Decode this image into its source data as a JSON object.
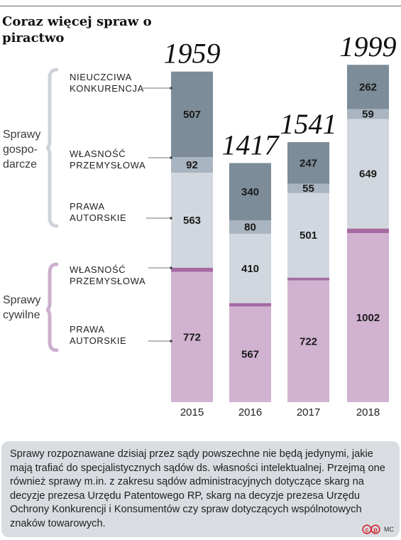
{
  "title": "Coraz więcej spraw o piractwo",
  "groups": [
    {
      "label_lines": [
        "Sprawy",
        "gospo-",
        "darcze"
      ]
    },
    {
      "label_lines": [
        "Sprawy",
        "cywilne"
      ]
    }
  ],
  "segment_labels": [
    {
      "lines": [
        "NIEUCZCIWA",
        "KONKURENCJA"
      ]
    },
    {
      "lines": [
        "WŁASNOŚĆ",
        "PRZEMYSŁOWA"
      ]
    },
    {
      "lines": [
        "PRAWA",
        "AUTORSKIE"
      ]
    },
    {
      "lines": [
        "WŁASNOŚĆ",
        "PRZEMYSŁOWA"
      ]
    },
    {
      "lines": [
        "PRAWA",
        "AUTORSKIE"
      ]
    }
  ],
  "colors": {
    "nieuczciwa": "#7c8c98",
    "wlasnosc_gosp": "#a9b5c0",
    "autorskie_gosp": "#d1d7de",
    "wlasnosc_cyw": "#a56aa2",
    "autorskie_cyw": "#d1b3d1",
    "bracket": "#cfd4da",
    "bracket_cyw": "#cdb0cf"
  },
  "chart_data": {
    "type": "bar",
    "stacked": true,
    "categories": [
      "2015",
      "2016",
      "2017",
      "2018"
    ],
    "totals": [
      "1959",
      "1417",
      "1541",
      "1999"
    ],
    "ylim": [
      0,
      2000
    ],
    "series": [
      {
        "key": "autorskie_cyw",
        "values": [
          772,
          567,
          722,
          1002
        ]
      },
      {
        "key": "wlasnosc_cyw",
        "values": [
          25,
          20,
          16,
          27
        ]
      },
      {
        "key": "autorskie_gosp",
        "values": [
          563,
          410,
          501,
          649
        ]
      },
      {
        "key": "wlasnosc_gosp",
        "values": [
          92,
          80,
          55,
          59
        ]
      },
      {
        "key": "nieuczciwa",
        "values": [
          507,
          340,
          247,
          262
        ]
      }
    ]
  },
  "note": "Sprawy rozpoznawane dzisiaj przez sądy powszechne nie będą jedynymi, jakie mają trafiać do specjalistycznych sądów ds. własności intelektualnej. Przejmą one również sprawy m.in. z zakresu sądów administracyjnych dotyczące skarg na decyzje prezesa Urzędu Patentowego RP, skarg na decyzje prezesa Urzędu Ochrony Konkurencji i Konsumentów czy spraw dotyczących wspólnotowych znaków towarowych.",
  "credit": "MC"
}
